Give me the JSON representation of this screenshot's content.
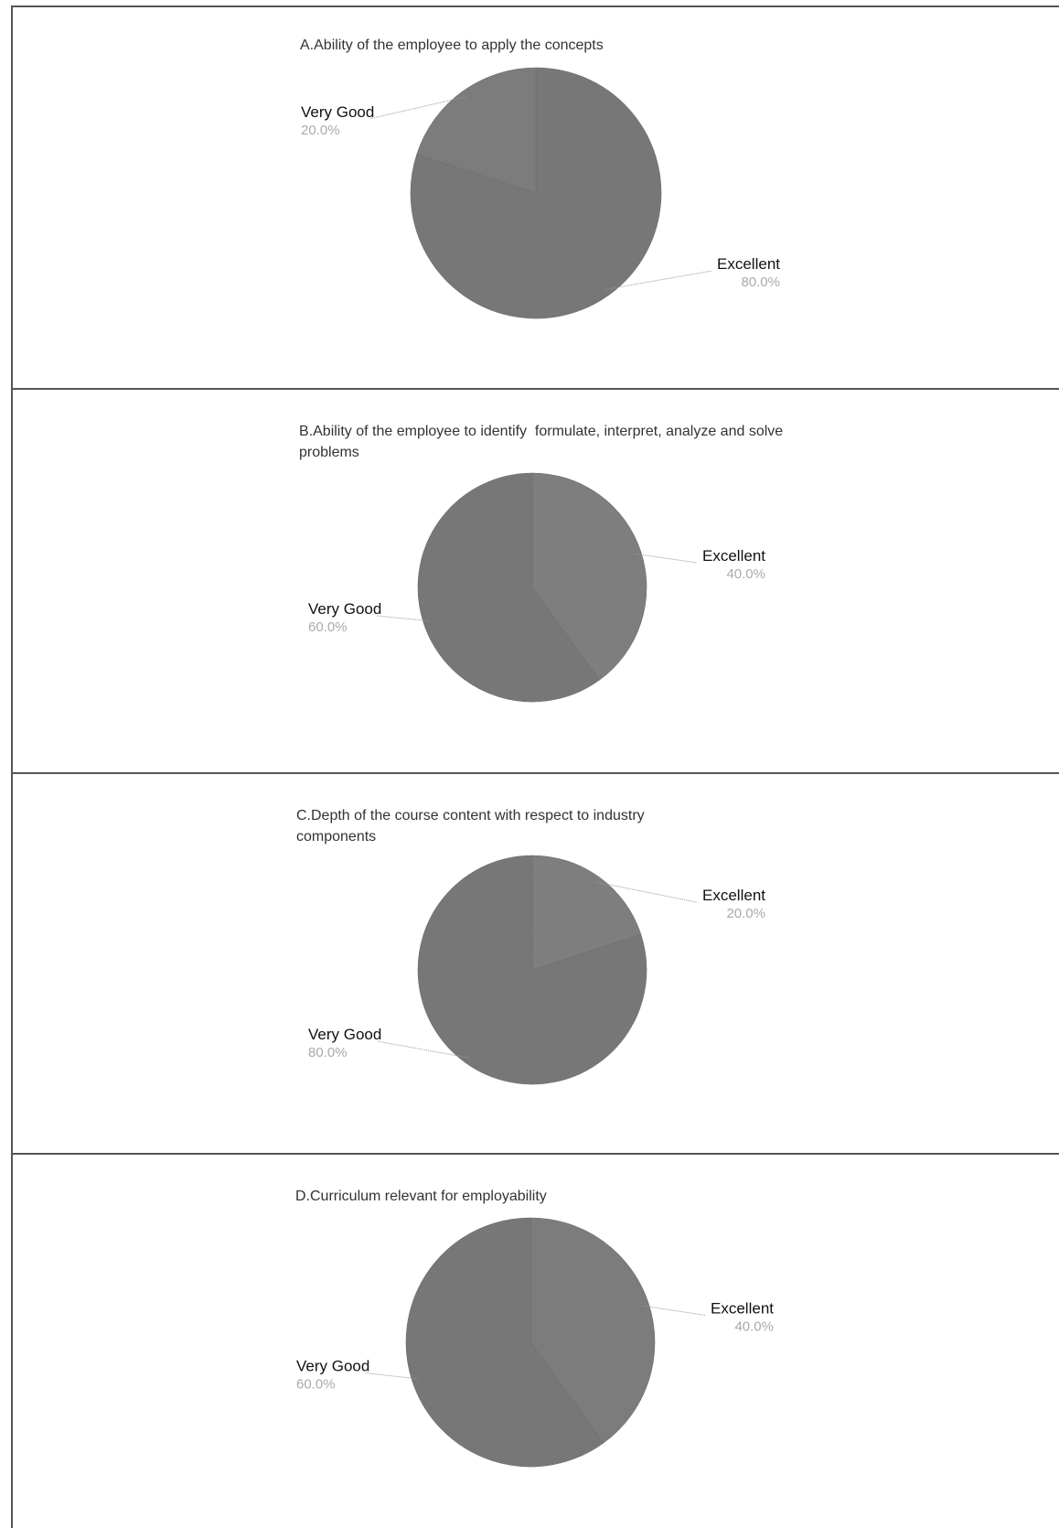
{
  "chart_data": [
    {
      "type": "pie",
      "title": "A.Ability of the employee to apply the concepts",
      "slices": [
        {
          "label": "Excellent",
          "value": 80.0,
          "pct_label": "80.0%",
          "color": "#777777"
        },
        {
          "label": "Very Good",
          "value": 20.0,
          "pct_label": "20.0%",
          "color": "#7c7c7c"
        }
      ]
    },
    {
      "type": "pie",
      "title": "B.Ability of the employee to identify  formulate, interpret, analyze and solve problems",
      "slices": [
        {
          "label": "Excellent",
          "value": 40.0,
          "pct_label": "40.0%",
          "color": "#7e7e7e"
        },
        {
          "label": "Very Good",
          "value": 60.0,
          "pct_label": "60.0%",
          "color": "#777777"
        }
      ]
    },
    {
      "type": "pie",
      "title": "C.Depth of the course content with respect to industry components",
      "slices": [
        {
          "label": "Excellent",
          "value": 20.0,
          "pct_label": "20.0%",
          "color": "#7e7e7e"
        },
        {
          "label": "Very Good",
          "value": 80.0,
          "pct_label": "80.0%",
          "color": "#777777"
        }
      ]
    },
    {
      "type": "pie",
      "title": "D.Curriculum relevant for employability",
      "slices": [
        {
          "label": "Excellent",
          "value": 40.0,
          "pct_label": "40.0%",
          "color": "#7c7c7c"
        },
        {
          "label": "Very Good",
          "value": 60.0,
          "pct_label": "60.0%",
          "color": "#777777"
        }
      ]
    }
  ]
}
